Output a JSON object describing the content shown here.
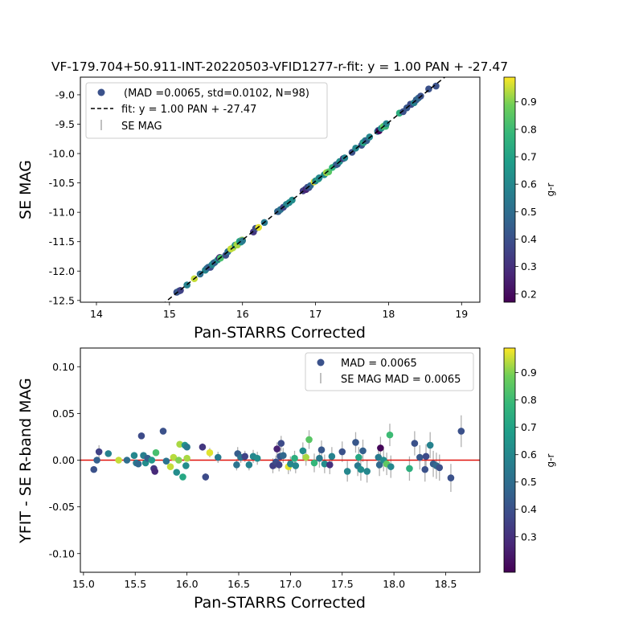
{
  "chart_data": [
    {
      "type": "scatter",
      "title": "VF-179.704+50.911-INT-20220503-VFID1277-r-fit: y = 1.00 PAN + -27.47",
      "xlabel": "Pan-STARRS Corrected",
      "ylabel": "SE MAG",
      "xlim": [
        13.78,
        19.25
      ],
      "ylim": [
        -12.53,
        -8.7
      ],
      "xticks": [
        14,
        15,
        16,
        17,
        18,
        19
      ],
      "yticks": [
        -12.5,
        -12.0,
        -11.5,
        -11.0,
        -10.5,
        -10.0,
        -9.5,
        -9.0
      ],
      "colorbar": {
        "label": "g-r",
        "range": [
          0.17,
          0.99
        ],
        "ticks": [
          0.2,
          0.3,
          0.4,
          0.5,
          0.6,
          0.7,
          0.8,
          0.9
        ]
      },
      "fit_line": {
        "slope": 1.0,
        "intercept": -27.47
      },
      "legend": {
        "placement": "upper-left",
        "entries": [
          "(MAD =0.0065, std=0.0102, N=98)",
          "fit: y = 1.00 PAN + -27.47",
          "SE MAG"
        ]
      }
    },
    {
      "type": "scatter",
      "xlabel": "Pan-STARRS Corrected",
      "ylabel": "YFIT - SE R-band MAG",
      "xlim": [
        14.97,
        18.83
      ],
      "ylim": [
        -0.12,
        0.12
      ],
      "xticks": [
        15.0,
        15.5,
        16.0,
        16.5,
        17.0,
        17.5,
        18.0,
        18.5
      ],
      "yticks": [
        -0.1,
        -0.05,
        0.0,
        0.05,
        0.1
      ],
      "colorbar": {
        "label": "g-r",
        "range": [
          0.17,
          0.99
        ],
        "ticks": [
          0.3,
          0.4,
          0.5,
          0.6,
          0.7,
          0.8,
          0.9
        ]
      },
      "zero_line": 0.0,
      "legend": {
        "placement": "upper-right",
        "entries": [
          "MAD = 0.0065",
          "SE MAG MAD = 0.0065"
        ]
      },
      "points": [
        {
          "x": 15.1,
          "y": -0.01,
          "c": 0.4,
          "e": 0.003
        },
        {
          "x": 15.13,
          "y": 0.0,
          "c": 0.45,
          "e": 0.003
        },
        {
          "x": 15.15,
          "y": 0.009,
          "c": 0.35,
          "e": 0.007
        },
        {
          "x": 15.24,
          "y": 0.007,
          "c": 0.58,
          "e": 0.003
        },
        {
          "x": 15.34,
          "y": 0.0,
          "c": 0.95,
          "e": 0.003
        },
        {
          "x": 15.42,
          "y": 0.0,
          "c": 0.5,
          "e": 0.003
        },
        {
          "x": 15.49,
          "y": 0.005,
          "c": 0.6,
          "e": 0.003
        },
        {
          "x": 15.51,
          "y": -0.003,
          "c": 0.55,
          "e": 0.003
        },
        {
          "x": 15.53,
          "y": -0.004,
          "c": 0.48,
          "e": 0.003
        },
        {
          "x": 15.56,
          "y": 0.026,
          "c": 0.38,
          "e": 0.003
        },
        {
          "x": 15.58,
          "y": 0.005,
          "c": 0.57,
          "e": 0.003
        },
        {
          "x": 15.6,
          "y": -0.003,
          "c": 0.62,
          "e": 0.003
        },
        {
          "x": 15.62,
          "y": 0.002,
          "c": 0.45,
          "e": 0.003
        },
        {
          "x": 15.66,
          "y": 0.0,
          "c": 0.66,
          "e": 0.003
        },
        {
          "x": 15.68,
          "y": -0.009,
          "c": 0.32,
          "e": 0.003
        },
        {
          "x": 15.69,
          "y": -0.012,
          "c": 0.28,
          "e": 0.003
        },
        {
          "x": 15.7,
          "y": 0.008,
          "c": 0.82,
          "e": 0.003
        },
        {
          "x": 15.77,
          "y": 0.031,
          "c": 0.4,
          "e": 0.003
        },
        {
          "x": 15.8,
          "y": -0.001,
          "c": 0.52,
          "e": 0.003
        },
        {
          "x": 15.84,
          "y": -0.007,
          "c": 0.95,
          "e": 0.003
        },
        {
          "x": 15.87,
          "y": 0.003,
          "c": 0.94,
          "e": 0.003
        },
        {
          "x": 15.9,
          "y": -0.013,
          "c": 0.62,
          "e": 0.003
        },
        {
          "x": 15.92,
          "y": 0.0,
          "c": 0.9,
          "e": 0.003
        },
        {
          "x": 15.93,
          "y": 0.017,
          "c": 0.93,
          "e": 0.003
        },
        {
          "x": 15.96,
          "y": -0.018,
          "c": 0.72,
          "e": 0.003
        },
        {
          "x": 15.98,
          "y": 0.016,
          "c": 0.65,
          "e": 0.003
        },
        {
          "x": 15.99,
          "y": -0.006,
          "c": 0.62,
          "e": 0.003
        },
        {
          "x": 16.0,
          "y": 0.002,
          "c": 0.93,
          "e": 0.003
        },
        {
          "x": 16.0,
          "y": 0.014,
          "c": 0.55,
          "e": 0.003
        },
        {
          "x": 16.15,
          "y": 0.014,
          "c": 0.32,
          "e": 0.004
        },
        {
          "x": 16.18,
          "y": -0.018,
          "c": 0.38,
          "e": 0.004
        },
        {
          "x": 16.22,
          "y": 0.008,
          "c": 0.97,
          "e": 0.005
        },
        {
          "x": 16.3,
          "y": 0.003,
          "c": 0.55,
          "e": 0.006
        },
        {
          "x": 16.48,
          "y": -0.005,
          "c": 0.52,
          "e": 0.006
        },
        {
          "x": 16.49,
          "y": 0.007,
          "c": 0.44,
          "e": 0.007
        },
        {
          "x": 16.52,
          "y": 0.003,
          "c": 0.52,
          "e": 0.006
        },
        {
          "x": 16.56,
          "y": 0.004,
          "c": 0.36,
          "e": 0.006
        },
        {
          "x": 16.6,
          "y": -0.005,
          "c": 0.58,
          "e": 0.006
        },
        {
          "x": 16.64,
          "y": 0.004,
          "c": 0.6,
          "e": 0.007
        },
        {
          "x": 16.68,
          "y": 0.002,
          "c": 0.62,
          "e": 0.007
        },
        {
          "x": 16.83,
          "y": -0.006,
          "c": 0.34,
          "e": 0.008
        },
        {
          "x": 16.86,
          "y": -0.002,
          "c": 0.38,
          "e": 0.007
        },
        {
          "x": 16.87,
          "y": 0.012,
          "c": 0.26,
          "e": 0.007
        },
        {
          "x": 16.89,
          "y": -0.005,
          "c": 0.35,
          "e": 0.007
        },
        {
          "x": 16.9,
          "y": 0.004,
          "c": 0.4,
          "e": 0.008
        },
        {
          "x": 16.91,
          "y": 0.018,
          "c": 0.38,
          "e": 0.008
        },
        {
          "x": 16.93,
          "y": 0.005,
          "c": 0.48,
          "e": 0.008
        },
        {
          "x": 16.98,
          "y": -0.007,
          "c": 0.97,
          "e": 0.008
        },
        {
          "x": 17.0,
          "y": -0.004,
          "c": 0.6,
          "e": 0.008
        },
        {
          "x": 17.04,
          "y": 0.002,
          "c": 0.75,
          "e": 0.008
        },
        {
          "x": 17.05,
          "y": -0.006,
          "c": 0.6,
          "e": 0.008
        },
        {
          "x": 17.12,
          "y": 0.01,
          "c": 0.62,
          "e": 0.009
        },
        {
          "x": 17.15,
          "y": 0.003,
          "c": 0.93,
          "e": 0.009
        },
        {
          "x": 17.18,
          "y": 0.022,
          "c": 0.85,
          "e": 0.01
        },
        {
          "x": 17.23,
          "y": -0.003,
          "c": 0.78,
          "e": 0.01
        },
        {
          "x": 17.28,
          "y": 0.002,
          "c": 0.55,
          "e": 0.01
        },
        {
          "x": 17.3,
          "y": 0.011,
          "c": 0.42,
          "e": 0.01
        },
        {
          "x": 17.33,
          "y": -0.004,
          "c": 0.62,
          "e": 0.01
        },
        {
          "x": 17.38,
          "y": -0.005,
          "c": 0.3,
          "e": 0.01
        },
        {
          "x": 17.4,
          "y": 0.004,
          "c": 0.58,
          "e": 0.01
        },
        {
          "x": 17.5,
          "y": 0.009,
          "c": 0.4,
          "e": 0.011
        },
        {
          "x": 17.55,
          "y": -0.012,
          "c": 0.6,
          "e": 0.011
        },
        {
          "x": 17.63,
          "y": 0.019,
          "c": 0.42,
          "e": 0.011
        },
        {
          "x": 17.65,
          "y": -0.006,
          "c": 0.55,
          "e": 0.011
        },
        {
          "x": 17.66,
          "y": 0.003,
          "c": 0.72,
          "e": 0.011
        },
        {
          "x": 17.68,
          "y": -0.01,
          "c": 0.62,
          "e": 0.012
        },
        {
          "x": 17.7,
          "y": 0.01,
          "c": 0.45,
          "e": 0.012
        },
        {
          "x": 17.74,
          "y": -0.012,
          "c": 0.6,
          "e": 0.012
        },
        {
          "x": 17.85,
          "y": 0.003,
          "c": 0.55,
          "e": 0.012
        },
        {
          "x": 17.86,
          "y": -0.005,
          "c": 0.48,
          "e": 0.012
        },
        {
          "x": 17.87,
          "y": 0.013,
          "c": 0.18,
          "e": 0.012
        },
        {
          "x": 17.9,
          "y": 0.0,
          "c": 0.62,
          "e": 0.012
        },
        {
          "x": 17.93,
          "y": -0.004,
          "c": 0.86,
          "e": 0.012
        },
        {
          "x": 17.96,
          "y": 0.027,
          "c": 0.8,
          "e": 0.012
        },
        {
          "x": 17.97,
          "y": -0.007,
          "c": 0.6,
          "e": 0.012
        },
        {
          "x": 18.15,
          "y": -0.009,
          "c": 0.75,
          "e": 0.013
        },
        {
          "x": 18.2,
          "y": 0.018,
          "c": 0.4,
          "e": 0.013
        },
        {
          "x": 18.25,
          "y": 0.003,
          "c": 0.42,
          "e": 0.013
        },
        {
          "x": 18.3,
          "y": -0.01,
          "c": 0.4,
          "e": 0.013
        },
        {
          "x": 18.31,
          "y": 0.004,
          "c": 0.38,
          "e": 0.013
        },
        {
          "x": 18.35,
          "y": 0.016,
          "c": 0.58,
          "e": 0.014
        },
        {
          "x": 18.38,
          "y": -0.004,
          "c": 0.44,
          "e": 0.014
        },
        {
          "x": 18.41,
          "y": -0.006,
          "c": 0.48,
          "e": 0.014
        },
        {
          "x": 18.44,
          "y": -0.008,
          "c": 0.4,
          "e": 0.014
        },
        {
          "x": 18.55,
          "y": -0.019,
          "c": 0.4,
          "e": 0.015
        },
        {
          "x": 18.65,
          "y": 0.031,
          "c": 0.4,
          "e": 0.017
        }
      ]
    }
  ]
}
